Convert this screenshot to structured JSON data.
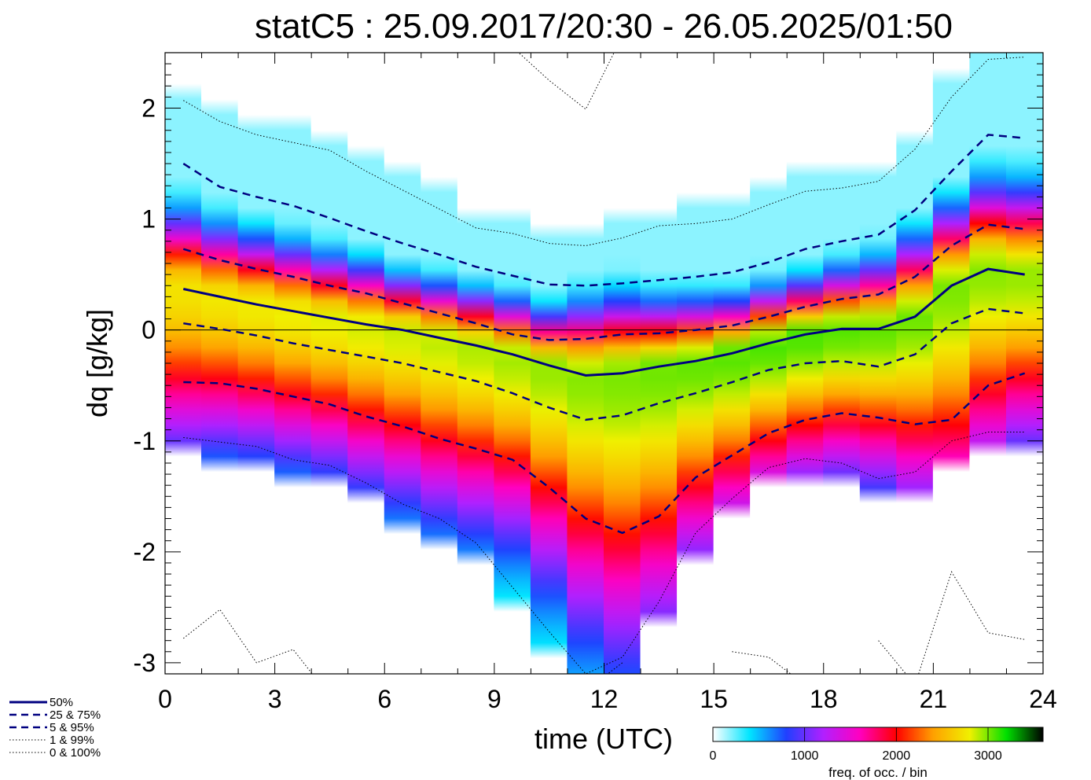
{
  "chart_data": {
    "type": "heatmap",
    "title": "statC5 : 25.09.2017/20:30 - 26.05.2025/01:50",
    "xlabel": "time (UTC)",
    "ylabel": "dq [g/kg]",
    "xlim": [
      0,
      24
    ],
    "ylim": [
      -3.1,
      2.5
    ],
    "xticks": [
      0,
      3,
      6,
      9,
      12,
      15,
      18,
      21,
      24
    ],
    "yticks": [
      -3,
      -2,
      -1,
      0,
      1,
      2
    ],
    "x": [
      0.5,
      1.5,
      2.5,
      3.5,
      4.5,
      5.5,
      6.5,
      7.5,
      8.5,
      9.5,
      10.5,
      11.5,
      12.5,
      13.5,
      14.5,
      15.5,
      16.5,
      17.5,
      18.5,
      19.5,
      20.5,
      21.5,
      22.5,
      23.5
    ],
    "series": [
      {
        "name": "50%",
        "style": "solid",
        "values": [
          0.37,
          0.3,
          0.23,
          0.17,
          0.11,
          0.05,
          0.0,
          -0.07,
          -0.14,
          -0.22,
          -0.32,
          -0.41,
          -0.39,
          -0.33,
          -0.28,
          -0.21,
          -0.12,
          -0.04,
          0.01,
          0.01,
          0.12,
          0.4,
          0.55,
          0.5
        ]
      },
      {
        "name": "25%",
        "style": "dashed",
        "values": [
          -0.47,
          -0.48,
          -0.53,
          -0.6,
          -0.67,
          -0.78,
          -0.87,
          -0.98,
          -1.07,
          -1.17,
          -1.42,
          -1.7,
          -1.83,
          -1.68,
          -1.33,
          -1.13,
          -0.93,
          -0.81,
          -0.75,
          -0.79,
          -0.85,
          -0.81,
          -0.5,
          -0.39
        ]
      },
      {
        "name": "75%",
        "style": "dashed",
        "values": [
          0.73,
          0.63,
          0.55,
          0.48,
          0.4,
          0.33,
          0.24,
          0.15,
          0.06,
          -0.04,
          -0.09,
          -0.08,
          -0.04,
          -0.03,
          0.0,
          0.04,
          0.12,
          0.21,
          0.28,
          0.32,
          0.48,
          0.76,
          0.95,
          0.91
        ]
      },
      {
        "name": "5%",
        "style": "dashed",
        "values": [
          0.06,
          0.01,
          -0.05,
          -0.12,
          -0.18,
          -0.24,
          -0.3,
          -0.38,
          -0.46,
          -0.57,
          -0.7,
          -0.81,
          -0.77,
          -0.66,
          -0.57,
          -0.47,
          -0.36,
          -0.3,
          -0.28,
          -0.33,
          -0.22,
          0.06,
          0.19,
          0.15
        ]
      },
      {
        "name": "95%",
        "style": "dashed",
        "values": [
          1.5,
          1.29,
          1.2,
          1.12,
          1.01,
          0.89,
          0.78,
          0.68,
          0.57,
          0.49,
          0.41,
          0.4,
          0.42,
          0.45,
          0.48,
          0.52,
          0.61,
          0.73,
          0.8,
          0.86,
          1.08,
          1.43,
          1.76,
          1.73
        ]
      },
      {
        "name": "1%",
        "style": "dotted",
        "values": [
          -0.97,
          -1.01,
          -1.05,
          -1.17,
          -1.22,
          -1.38,
          -1.57,
          -1.7,
          -1.92,
          -2.32,
          -2.72,
          -3.1,
          -2.95,
          -2.45,
          -1.83,
          -1.52,
          -1.24,
          -1.16,
          -1.2,
          -1.34,
          -1.28,
          -1.0,
          -0.92,
          -0.92
        ]
      },
      {
        "name": "99%",
        "style": "dotted",
        "values": [
          2.07,
          1.88,
          1.76,
          1.69,
          1.62,
          1.43,
          1.26,
          1.09,
          0.92,
          0.87,
          0.78,
          0.76,
          0.83,
          0.94,
          0.96,
          1.0,
          1.13,
          1.25,
          1.28,
          1.34,
          1.63,
          2.1,
          2.44,
          2.46
        ]
      },
      {
        "name": "0%",
        "style": "dotted",
        "values": [
          -2.78,
          -2.52,
          -3.0,
          -2.88,
          -3.3,
          null,
          null,
          null,
          null,
          null,
          -3.1,
          -3.25,
          -3.0,
          null,
          null,
          -2.9,
          -2.95,
          -3.2,
          null,
          -2.8,
          -3.2,
          -2.18,
          -2.73,
          -2.79
        ]
      },
      {
        "name": "100%",
        "style": "dotted",
        "values": [
          null,
          null,
          null,
          null,
          null,
          null,
          null,
          null,
          null,
          2.55,
          2.25,
          1.99,
          2.65,
          null,
          null,
          null,
          null,
          null,
          null,
          null,
          null,
          null,
          null,
          null
        ]
      }
    ],
    "zero_line": 0,
    "colorbar": {
      "label": "freq. of occ. / bin",
      "ticks": [
        0,
        1000,
        2000,
        3000
      ],
      "range": [
        0,
        3600
      ],
      "colors": [
        "#ffffff",
        "#00e5ff",
        "#2040ff",
        "#b020ff",
        "#ff00c0",
        "#ff0000",
        "#ffa000",
        "#f0f000",
        "#00e000",
        "#000000"
      ]
    },
    "legend": {
      "position": "bottom-left",
      "entries": [
        {
          "label": "50%",
          "style": "solid"
        },
        {
          "label": "25 &  75%",
          "style": "dashed"
        },
        {
          "label": " 5 &  95%",
          "style": "dashed"
        },
        {
          "label": " 1 &  99%",
          "style": "dotted"
        },
        {
          "label": " 0 & 100%",
          "style": "dotted"
        }
      ]
    }
  }
}
